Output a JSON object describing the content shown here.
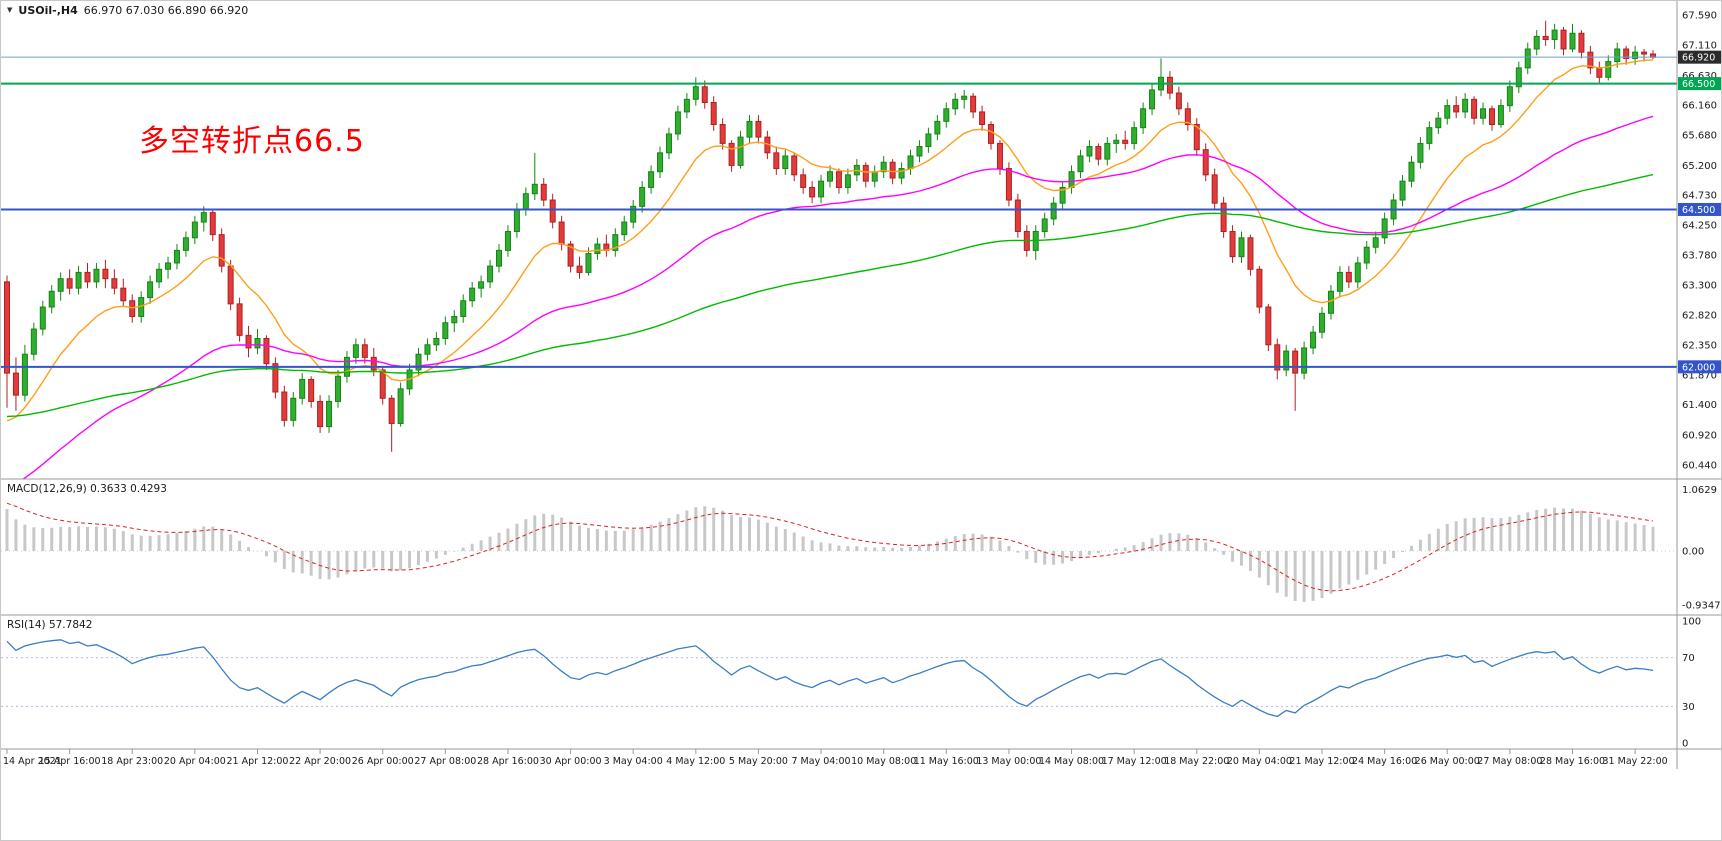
{
  "header": {
    "symbol_period": "USOil-,H4",
    "ohlc_text": "66.970 67.030 66.890 66.920",
    "dropdown_glyph": "▼"
  },
  "annotation": {
    "text": "多空转折点66.5",
    "color": "#ff0000"
  },
  "chart_data": {
    "type": "candlestick",
    "symbol": "USOil-",
    "timeframe": "H4",
    "ylim": [
      60.44,
      67.59
    ],
    "y_ticks": [
      "67.590",
      "67.110",
      "66.630",
      "66.160",
      "65.680",
      "65.200",
      "64.730",
      "64.250",
      "63.780",
      "63.300",
      "62.820",
      "62.350",
      "61.870",
      "61.400",
      "60.920",
      "60.440"
    ],
    "x_labels": [
      "14 Apr 2021",
      "15 Apr 16:00",
      "18 Apr 23:00",
      "20 Apr 04:00",
      "21 Apr 12:00",
      "22 Apr 20:00",
      "26 Apr 00:00",
      "27 Apr 08:00",
      "28 Apr 16:00",
      "30 Apr 00:00",
      "3 May 04:00",
      "4 May 12:00",
      "5 May 20:00",
      "7 May 04:00",
      "10 May 08:00",
      "11 May 16:00",
      "13 May 00:00",
      "14 May 08:00",
      "17 May 12:00",
      "18 May 22:00",
      "20 May 04:00",
      "21 May 12:00",
      "24 May 16:00",
      "26 May 00:00",
      "27 May 08:00",
      "28 May 16:00",
      "31 May 22:00"
    ],
    "x_label_every": 7,
    "ohlc": [
      [
        63.35,
        63.45,
        61.35,
        61.9
      ],
      [
        61.9,
        62.15,
        61.3,
        61.55
      ],
      [
        61.55,
        62.35,
        61.45,
        62.2
      ],
      [
        62.2,
        62.7,
        62.1,
        62.6
      ],
      [
        62.6,
        63.05,
        62.5,
        62.95
      ],
      [
        62.95,
        63.3,
        62.85,
        63.2
      ],
      [
        63.2,
        63.5,
        63.05,
        63.4
      ],
      [
        63.4,
        63.55,
        63.15,
        63.25
      ],
      [
        63.25,
        63.6,
        63.15,
        63.5
      ],
      [
        63.5,
        63.65,
        63.25,
        63.35
      ],
      [
        63.35,
        63.65,
        63.25,
        63.55
      ],
      [
        63.55,
        63.7,
        63.25,
        63.4
      ],
      [
        63.4,
        63.55,
        63.15,
        63.25
      ],
      [
        63.25,
        63.4,
        62.95,
        63.05
      ],
      [
        63.05,
        63.15,
        62.7,
        62.8
      ],
      [
        62.8,
        63.2,
        62.7,
        63.1
      ],
      [
        63.1,
        63.45,
        63.0,
        63.35
      ],
      [
        63.35,
        63.65,
        63.25,
        63.55
      ],
      [
        63.55,
        63.75,
        63.4,
        63.65
      ],
      [
        63.65,
        63.95,
        63.55,
        63.85
      ],
      [
        63.85,
        64.15,
        63.75,
        64.05
      ],
      [
        64.05,
        64.4,
        63.95,
        64.3
      ],
      [
        64.3,
        64.55,
        64.15,
        64.45
      ],
      [
        64.45,
        64.5,
        64.0,
        64.1
      ],
      [
        64.1,
        64.2,
        63.5,
        63.6
      ],
      [
        63.6,
        63.7,
        62.9,
        63.0
      ],
      [
        63.0,
        63.1,
        62.4,
        62.5
      ],
      [
        62.5,
        62.65,
        62.15,
        62.3
      ],
      [
        62.3,
        62.6,
        62.2,
        62.45
      ],
      [
        62.45,
        62.5,
        61.95,
        62.05
      ],
      [
        62.05,
        62.15,
        61.5,
        61.6
      ],
      [
        61.6,
        61.7,
        61.05,
        61.15
      ],
      [
        61.15,
        61.6,
        61.05,
        61.5
      ],
      [
        61.5,
        61.9,
        61.4,
        61.8
      ],
      [
        61.8,
        61.85,
        61.35,
        61.45
      ],
      [
        61.45,
        61.55,
        60.95,
        61.05
      ],
      [
        61.05,
        61.55,
        60.95,
        61.45
      ],
      [
        61.45,
        61.95,
        61.35,
        61.85
      ],
      [
        61.85,
        62.25,
        61.75,
        62.15
      ],
      [
        62.15,
        62.45,
        62.05,
        62.35
      ],
      [
        62.35,
        62.45,
        62.05,
        62.15
      ],
      [
        62.15,
        62.3,
        61.85,
        61.95
      ],
      [
        61.95,
        62.0,
        61.4,
        61.5
      ],
      [
        61.5,
        61.55,
        60.65,
        61.1
      ],
      [
        61.1,
        61.75,
        61.05,
        61.65
      ],
      [
        61.65,
        62.05,
        61.55,
        61.95
      ],
      [
        61.95,
        62.3,
        61.85,
        62.2
      ],
      [
        62.2,
        62.45,
        62.1,
        62.35
      ],
      [
        62.35,
        62.55,
        62.25,
        62.45
      ],
      [
        62.45,
        62.8,
        62.35,
        62.7
      ],
      [
        62.7,
        62.9,
        62.55,
        62.8
      ],
      [
        62.8,
        63.15,
        62.7,
        63.05
      ],
      [
        63.05,
        63.35,
        62.95,
        63.25
      ],
      [
        63.25,
        63.45,
        63.1,
        63.35
      ],
      [
        63.35,
        63.7,
        63.25,
        63.6
      ],
      [
        63.6,
        63.95,
        63.5,
        63.85
      ],
      [
        63.85,
        64.25,
        63.75,
        64.15
      ],
      [
        64.15,
        64.6,
        64.05,
        64.5
      ],
      [
        64.5,
        64.85,
        64.4,
        64.75
      ],
      [
        64.75,
        65.4,
        64.65,
        64.9
      ],
      [
        64.9,
        65.0,
        64.55,
        64.65
      ],
      [
        64.65,
        64.75,
        64.2,
        64.3
      ],
      [
        64.3,
        64.4,
        63.85,
        63.95
      ],
      [
        63.95,
        64.0,
        63.5,
        63.6
      ],
      [
        63.6,
        63.75,
        63.4,
        63.5
      ],
      [
        63.5,
        63.9,
        63.45,
        63.8
      ],
      [
        63.8,
        64.05,
        63.7,
        63.95
      ],
      [
        63.95,
        64.1,
        63.75,
        63.85
      ],
      [
        63.85,
        64.2,
        63.75,
        64.1
      ],
      [
        64.1,
        64.4,
        64.0,
        64.3
      ],
      [
        64.3,
        64.65,
        64.2,
        64.55
      ],
      [
        64.55,
        64.95,
        64.45,
        64.85
      ],
      [
        64.85,
        65.2,
        64.75,
        65.1
      ],
      [
        65.1,
        65.5,
        65.0,
        65.4
      ],
      [
        65.4,
        65.8,
        65.3,
        65.7
      ],
      [
        65.7,
        66.15,
        65.6,
        66.05
      ],
      [
        66.05,
        66.35,
        65.95,
        66.25
      ],
      [
        66.25,
        66.6,
        66.15,
        66.45
      ],
      [
        66.45,
        66.55,
        66.1,
        66.2
      ],
      [
        66.2,
        66.3,
        65.75,
        65.85
      ],
      [
        65.85,
        65.95,
        65.45,
        65.55
      ],
      [
        65.55,
        65.6,
        65.1,
        65.2
      ],
      [
        65.2,
        65.75,
        65.15,
        65.65
      ],
      [
        65.65,
        66.0,
        65.55,
        65.9
      ],
      [
        65.9,
        66.0,
        65.55,
        65.65
      ],
      [
        65.65,
        65.75,
        65.3,
        65.4
      ],
      [
        65.4,
        65.5,
        65.05,
        65.15
      ],
      [
        65.15,
        65.45,
        65.05,
        65.35
      ],
      [
        65.35,
        65.4,
        64.95,
        65.05
      ],
      [
        65.05,
        65.15,
        64.75,
        64.85
      ],
      [
        64.85,
        64.95,
        64.6,
        64.7
      ],
      [
        64.7,
        65.05,
        64.6,
        64.95
      ],
      [
        64.95,
        65.2,
        64.85,
        65.1
      ],
      [
        65.1,
        65.15,
        64.75,
        64.85
      ],
      [
        64.85,
        65.15,
        64.75,
        65.05
      ],
      [
        65.05,
        65.3,
        64.95,
        65.2
      ],
      [
        65.2,
        65.25,
        64.85,
        64.95
      ],
      [
        64.95,
        65.2,
        64.85,
        65.1
      ],
      [
        65.1,
        65.35,
        65.0,
        65.25
      ],
      [
        65.25,
        65.3,
        64.9,
        65.0
      ],
      [
        65.0,
        65.25,
        64.9,
        65.15
      ],
      [
        65.15,
        65.45,
        65.05,
        65.35
      ],
      [
        65.35,
        65.6,
        65.25,
        65.5
      ],
      [
        65.5,
        65.8,
        65.4,
        65.7
      ],
      [
        65.7,
        66.0,
        65.6,
        65.9
      ],
      [
        65.9,
        66.2,
        65.8,
        66.1
      ],
      [
        66.1,
        66.35,
        66.0,
        66.25
      ],
      [
        66.25,
        66.4,
        66.1,
        66.3
      ],
      [
        66.3,
        66.35,
        65.95,
        66.05
      ],
      [
        66.05,
        66.15,
        65.75,
        65.85
      ],
      [
        65.85,
        65.9,
        65.45,
        65.55
      ],
      [
        65.55,
        65.6,
        65.05,
        65.15
      ],
      [
        65.15,
        65.25,
        64.55,
        64.65
      ],
      [
        64.65,
        64.75,
        64.05,
        64.15
      ],
      [
        64.15,
        64.25,
        63.75,
        63.85
      ],
      [
        63.85,
        64.25,
        63.7,
        64.15
      ],
      [
        64.15,
        64.45,
        64.05,
        64.35
      ],
      [
        64.35,
        64.7,
        64.25,
        64.6
      ],
      [
        64.6,
        64.95,
        64.5,
        64.85
      ],
      [
        64.85,
        65.2,
        64.75,
        65.1
      ],
      [
        65.1,
        65.45,
        65.0,
        65.35
      ],
      [
        65.35,
        65.6,
        65.25,
        65.5
      ],
      [
        65.5,
        65.55,
        65.2,
        65.3
      ],
      [
        65.3,
        65.65,
        65.2,
        65.55
      ],
      [
        65.55,
        65.7,
        65.4,
        65.6
      ],
      [
        65.6,
        65.75,
        65.45,
        65.55
      ],
      [
        65.55,
        65.9,
        65.45,
        65.8
      ],
      [
        65.8,
        66.2,
        65.7,
        66.1
      ],
      [
        66.1,
        66.5,
        66.0,
        66.4
      ],
      [
        66.4,
        66.9,
        66.3,
        66.6
      ],
      [
        66.6,
        66.7,
        66.25,
        66.35
      ],
      [
        66.35,
        66.45,
        66.0,
        66.1
      ],
      [
        66.1,
        66.2,
        65.75,
        65.85
      ],
      [
        65.85,
        65.95,
        65.35,
        65.45
      ],
      [
        65.45,
        65.55,
        64.95,
        65.05
      ],
      [
        65.05,
        65.15,
        64.5,
        64.6
      ],
      [
        64.6,
        64.7,
        64.05,
        64.15
      ],
      [
        64.15,
        64.25,
        63.65,
        63.75
      ],
      [
        63.75,
        64.15,
        63.65,
        64.05
      ],
      [
        64.05,
        64.1,
        63.45,
        63.55
      ],
      [
        63.55,
        63.6,
        62.85,
        62.95
      ],
      [
        62.95,
        63.0,
        62.25,
        62.35
      ],
      [
        62.35,
        62.45,
        61.8,
        61.95
      ],
      [
        61.95,
        62.35,
        61.85,
        62.25
      ],
      [
        62.25,
        62.3,
        61.3,
        61.9
      ],
      [
        61.9,
        62.4,
        61.8,
        62.3
      ],
      [
        62.3,
        62.65,
        62.2,
        62.55
      ],
      [
        62.55,
        62.95,
        62.45,
        62.85
      ],
      [
        62.85,
        63.3,
        62.75,
        63.2
      ],
      [
        63.2,
        63.6,
        63.1,
        63.5
      ],
      [
        63.5,
        63.6,
        63.25,
        63.35
      ],
      [
        63.35,
        63.75,
        63.25,
        63.65
      ],
      [
        63.65,
        64.0,
        63.55,
        63.9
      ],
      [
        63.9,
        64.15,
        63.8,
        64.05
      ],
      [
        64.05,
        64.45,
        63.95,
        64.35
      ],
      [
        64.35,
        64.75,
        64.25,
        64.65
      ],
      [
        64.65,
        65.05,
        64.55,
        64.95
      ],
      [
        64.95,
        65.35,
        64.85,
        65.25
      ],
      [
        65.25,
        65.65,
        65.15,
        65.55
      ],
      [
        65.55,
        65.9,
        65.45,
        65.8
      ],
      [
        65.8,
        66.05,
        65.7,
        65.95
      ],
      [
        65.95,
        66.25,
        65.85,
        66.15
      ],
      [
        66.15,
        66.3,
        65.95,
        66.05
      ],
      [
        66.05,
        66.35,
        65.95,
        66.25
      ],
      [
        66.25,
        66.3,
        65.85,
        65.95
      ],
      [
        65.95,
        66.2,
        65.85,
        66.1
      ],
      [
        66.1,
        66.15,
        65.75,
        65.85
      ],
      [
        65.85,
        66.25,
        65.8,
        66.15
      ],
      [
        66.15,
        66.55,
        66.05,
        66.45
      ],
      [
        66.45,
        66.85,
        66.35,
        66.75
      ],
      [
        66.75,
        67.15,
        66.65,
        67.05
      ],
      [
        67.05,
        67.35,
        66.95,
        67.25
      ],
      [
        67.25,
        67.5,
        67.1,
        67.2
      ],
      [
        67.2,
        67.45,
        67.05,
        67.35
      ],
      [
        67.35,
        67.4,
        66.95,
        67.05
      ],
      [
        67.05,
        67.45,
        67.0,
        67.3
      ],
      [
        67.3,
        67.35,
        66.9,
        67.0
      ],
      [
        67.0,
        67.1,
        66.65,
        66.75
      ],
      [
        66.75,
        66.85,
        66.5,
        66.6
      ],
      [
        66.6,
        66.95,
        66.55,
        66.85
      ],
      [
        66.85,
        67.15,
        66.75,
        67.05
      ],
      [
        67.05,
        67.1,
        66.8,
        66.9
      ],
      [
        66.9,
        67.1,
        66.8,
        67.0
      ],
      [
        67.0,
        67.05,
        66.85,
        66.97
      ],
      [
        66.97,
        67.03,
        66.89,
        66.92
      ]
    ],
    "colors": {
      "up": "#2fae2f",
      "up_stroke": "#158515",
      "down": "#e23b3b",
      "down_stroke": "#b02020",
      "background": "#ffffff",
      "separator": "#9a9a9a",
      "axis_text": "#1a1a1a"
    },
    "overlays": {
      "moving_averages": [
        {
          "period": 12,
          "seed": 61.0,
          "color": "#ff9f1a"
        },
        {
          "period": 45,
          "seed": 60.0,
          "color": "#ff00ff"
        },
        {
          "period": 120,
          "seed": 61.2,
          "color": "#00bb00"
        }
      ],
      "hlines": [
        {
          "price": 66.5,
          "label": "66.500",
          "color": "#00a651",
          "width": 2,
          "tag_bg": "#00a651"
        },
        {
          "price": 64.5,
          "label": "64.500",
          "color": "#3355cc",
          "width": 2,
          "tag_bg": "#3355cc"
        },
        {
          "price": 62.0,
          "label": "62.000",
          "color": "#3355cc",
          "width": 2,
          "tag_bg": "#3355cc"
        }
      ],
      "current_price": {
        "value": 66.92,
        "label": "66.920",
        "line_color": "#6aa0cc",
        "tag_bg": "#2b2b2b"
      }
    },
    "indicators": {
      "macd": {
        "label": "MACD(12,26,9) 0.3633 0.4293",
        "fast": 12,
        "slow": 26,
        "signal": 9,
        "seed_fast": 63.3,
        "seed_slow": 62.4,
        "seed_signal": 0.85,
        "axis_ticks": [
          "1.0629",
          "0.00",
          "-0.9347"
        ],
        "hist_color": "#c8c8c8",
        "signal_color": "#dd2222"
      },
      "rsi": {
        "label": "RSI(14) 57.7842",
        "period": 14,
        "seed_gain": 0.25,
        "seed_loss": 0.05,
        "levels": [
          70,
          30
        ],
        "axis_ticks": [
          "100",
          "70",
          "30",
          "0"
        ],
        "color": "#3b7dc4",
        "level_color": "#b9b9e0"
      }
    }
  }
}
